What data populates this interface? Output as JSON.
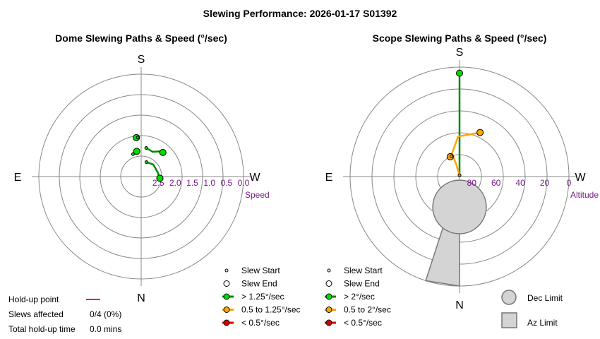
{
  "title": "Slewing Performance: 2026-01-17 S01392",
  "colors": {
    "fast": "#00dd00",
    "fast_line": "#008800",
    "medium": "#ffa500",
    "slow": "#dd0000",
    "ring": "#888888",
    "label_purple": "#7a1a8a",
    "limit_fill": "#d4d4d4",
    "limit_stroke": "#777777",
    "holdup": "#ff0000"
  },
  "chart_data": [
    {
      "type": "scatter",
      "projection": "polar",
      "title": "Dome Slewing Paths & Speed (°/sec)",
      "compass": {
        "top": "S",
        "bottom": "N",
        "left": "E",
        "right": "W"
      },
      "radial_axis": {
        "label": "Speed",
        "ticks": [
          {
            "value": 2.5,
            "label": "2.5"
          },
          {
            "value": 2.0,
            "label": "2.0"
          },
          {
            "value": 1.5,
            "label": "1.5"
          },
          {
            "value": 1.0,
            "label": "1.0"
          },
          {
            "value": 0.5,
            "label": "0.5"
          },
          {
            "value": 0.0,
            "label": "0.0"
          }
        ],
        "outer_value": 0.0,
        "inner_value": 3.0
      },
      "series": [
        {
          "speed_class": "fast",
          "points": [
            {
              "az_deg": 200,
              "speed": 2.55
            },
            {
              "az_deg": 225,
              "speed": 2.5
            },
            {
              "az_deg": 255,
              "speed": 2.5
            },
            {
              "az_deg": 275,
              "speed": 2.45
            }
          ]
        },
        {
          "speed_class": "fast",
          "points": [
            {
              "az_deg": 190,
              "speed": 2.15
            },
            {
              "az_deg": 205,
              "speed": 2.2
            },
            {
              "az_deg": 215,
              "speed": 2.1
            },
            {
              "az_deg": 222,
              "speed": 2.05
            }
          ]
        },
        {
          "speed_class": "fast",
          "points": [
            {
              "az_deg": 160,
              "speed": 2.3
            },
            {
              "az_deg": 165,
              "speed": 2.3
            },
            {
              "az_deg": 170,
              "speed": 2.25
            }
          ]
        },
        {
          "speed_class": "fast",
          "points": [
            {
              "az_deg": 175,
              "speed": 1.85
            },
            {
              "az_deg": 173,
              "speed": 1.85
            }
          ]
        }
      ]
    },
    {
      "type": "scatter",
      "projection": "polar",
      "title": "Scope Slewing Paths & Speed (°/sec)",
      "compass": {
        "top": "S",
        "bottom": "N",
        "left": "E",
        "right": "W"
      },
      "radial_axis": {
        "label": "Altitude",
        "ticks": [
          {
            "value": 80,
            "label": "80"
          },
          {
            "value": 60,
            "label": "60"
          },
          {
            "value": 40,
            "label": "40"
          },
          {
            "value": 20,
            "label": "20"
          },
          {
            "value": 0,
            "label": "0"
          }
        ],
        "outer_value": 0,
        "inner_value": 90
      },
      "limits": {
        "dec_limit": {
          "center_az_deg": 0,
          "center_alt": 65,
          "radius_alt": 22
        },
        "az_limit": {
          "az_from_deg": 0,
          "az_to_deg": 18,
          "alt_from": 55,
          "alt_to": 0
        }
      },
      "series": [
        {
          "speed_class": "fast",
          "points": [
            {
              "az_deg": 180,
              "alt": 89
            },
            {
              "az_deg": 180,
              "alt": 75
            },
            {
              "az_deg": 180,
              "alt": 60
            },
            {
              "az_deg": 180,
              "alt": 45
            },
            {
              "az_deg": 180,
              "alt": 30
            },
            {
              "az_deg": 180,
              "alt": 5
            }
          ]
        },
        {
          "speed_class": "medium",
          "points": [
            {
              "az_deg": 180,
              "alt": 89
            },
            {
              "az_deg": 165,
              "alt": 80
            },
            {
              "az_deg": 162,
              "alt": 70
            },
            {
              "az_deg": 178,
              "alt": 57
            },
            {
              "az_deg": 195,
              "alt": 54
            },
            {
              "az_deg": 205,
              "alt": 50
            }
          ]
        },
        {
          "speed_class": "medium",
          "points": [
            {
              "az_deg": 158,
              "alt": 72
            },
            {
              "az_deg": 155,
              "alt": 72
            }
          ]
        }
      ]
    }
  ],
  "legend_left": {
    "items": [
      {
        "kind": "start",
        "label": "Slew Start"
      },
      {
        "kind": "end",
        "label": "Slew End"
      },
      {
        "kind": "fast",
        "label": "> 1.25°/sec"
      },
      {
        "kind": "medium",
        "label": "0.5 to 1.25°/sec"
      },
      {
        "kind": "slow",
        "label": "< 0.5°/sec"
      }
    ]
  },
  "legend_right": {
    "items": [
      {
        "kind": "start",
        "label": "Slew Start"
      },
      {
        "kind": "end",
        "label": "Slew End"
      },
      {
        "kind": "fast",
        "label": "> 2°/sec"
      },
      {
        "kind": "medium",
        "label": "0.5 to 2°/sec"
      },
      {
        "kind": "slow",
        "label": "< 0.5°/sec"
      }
    ]
  },
  "limits_legend": {
    "dec_label": "Dec Limit",
    "az_label": "Az Limit"
  },
  "stats": {
    "holdup_label": "Hold-up point",
    "slews_label": "Slews affected",
    "slews_value": "0/4 (0%)",
    "time_label": "Total hold-up time",
    "time_value": "0.0 mins"
  }
}
